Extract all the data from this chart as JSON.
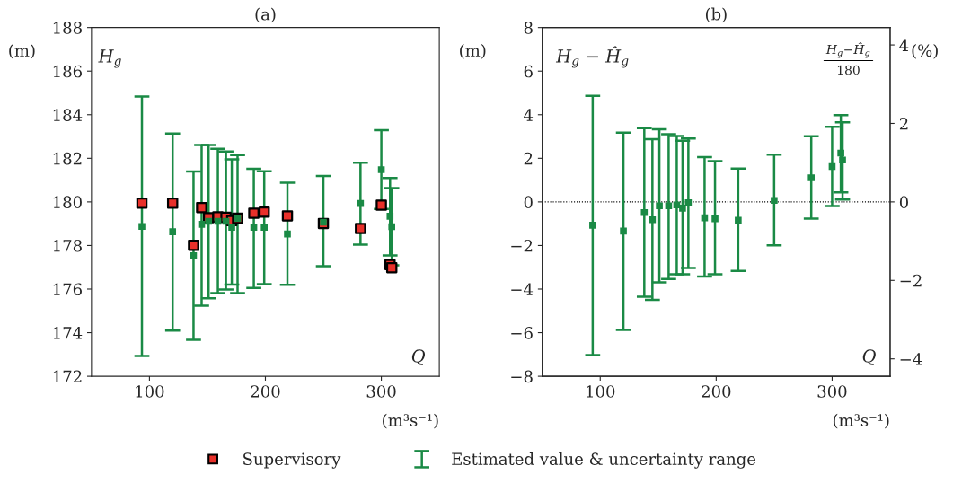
{
  "chart_data": [
    {
      "type": "scatter",
      "title": "(a)",
      "xlabel": "(m³s⁻¹)",
      "ylabel": "(m)",
      "annotations": [
        "H$_{g}$",
        "Q"
      ],
      "x": [
        93.5,
        120,
        138,
        145,
        151,
        159,
        166,
        171,
        176,
        190,
        199,
        219,
        250,
        282,
        300,
        307.5,
        309
      ],
      "series": [
        {
          "name": "Supervisory",
          "marker": "square",
          "color": "#e8302a",
          "values": [
            179.94,
            179.94,
            178.01,
            179.74,
            179.27,
            179.31,
            179.29,
            179.14,
            179.25,
            179.48,
            179.53,
            179.36,
            179.01,
            178.78,
            179.85,
            177.12,
            176.98
          ]
        },
        {
          "name": "Estimated value & uncertainty range",
          "marker": "square",
          "color": "#1a8a45",
          "values": [
            178.87,
            178.63,
            177.53,
            178.97,
            179.11,
            179.11,
            179.11,
            178.83,
            179.25,
            178.83,
            178.83,
            178.53,
            179.07,
            179.93,
            181.48,
            179.34,
            178.86
          ],
          "errors": [
            [
              172.93,
              184.83
            ],
            [
              174.09,
              183.14
            ],
            [
              173.67,
              181.4
            ],
            [
              175.24,
              182.61
            ],
            [
              175.58,
              182.61
            ],
            [
              175.81,
              182.44
            ],
            [
              175.98,
              182.31
            ],
            [
              176.21,
              181.95
            ],
            [
              175.81,
              182.15
            ],
            [
              176.05,
              181.52
            ],
            [
              176.23,
              181.41
            ],
            [
              176.2,
              180.88
            ],
            [
              177.05,
              181.19
            ],
            [
              178.04,
              181.8
            ],
            [
              179.68,
              183.29
            ],
            [
              177.54,
              181.1
            ],
            [
              177.09,
              180.63
            ]
          ]
        }
      ],
      "xlim": [
        50,
        350
      ],
      "xticks": [
        100,
        200,
        300
      ],
      "ylim": [
        172,
        188
      ],
      "yticks": [
        172,
        174,
        176,
        178,
        180,
        182,
        184,
        186,
        188
      ],
      "legend": "bottom"
    },
    {
      "type": "scatter",
      "title": "(b)",
      "xlabel": "(m³s⁻¹)",
      "ylabel": "(m)",
      "y2label": "(%)",
      "annotations": [
        "H$_{g}$ − Ĥ$_{g}$",
        "H$_{g}$−Ĥ$_{g}$",
        "180",
        "Q"
      ],
      "x": [
        93.5,
        120,
        138,
        145,
        151,
        159,
        166,
        171,
        176,
        190,
        199,
        219,
        250,
        282,
        300,
        307.5,
        309
      ],
      "series": [
        {
          "marker": "square",
          "color": "#1a8a45",
          "values": [
            -1.07,
            -1.34,
            -0.49,
            -0.82,
            -0.18,
            -0.18,
            -0.14,
            -0.29,
            -0.04,
            -0.73,
            -0.78,
            -0.84,
            0.07,
            1.11,
            1.62,
            2.24,
            1.92
          ],
          "errors": [
            [
              -7.03,
              4.87
            ],
            [
              -5.87,
              3.18
            ],
            [
              -4.35,
              3.38
            ],
            [
              -4.49,
              2.88
            ],
            [
              -3.69,
              3.33
            ],
            [
              -3.54,
              3.11
            ],
            [
              -3.32,
              3.02
            ],
            [
              -3.32,
              2.81
            ],
            [
              -3.03,
              2.91
            ],
            [
              -3.42,
              2.05
            ],
            [
              -3.32,
              1.87
            ],
            [
              -3.17,
              1.53
            ],
            [
              -1.99,
              2.17
            ],
            [
              -0.77,
              3.01
            ],
            [
              -0.19,
              3.44
            ],
            [
              0.44,
              3.98
            ],
            [
              0.11,
              3.65
            ]
          ]
        }
      ],
      "ref_lines": [
        {
          "axis": "y",
          "value": 0,
          "color": "#000000",
          "line_style": "dotted"
        }
      ],
      "xlim": [
        50,
        350
      ],
      "xticks": [
        100,
        200,
        300
      ],
      "ylim": [
        -8,
        8
      ],
      "yticks": [
        {
          "value": -8,
          "label": "−8"
        },
        {
          "value": -6,
          "label": "−6"
        },
        {
          "value": -4,
          "label": "−4"
        },
        {
          "value": -2,
          "label": "−2"
        },
        0,
        2,
        4,
        6,
        8
      ],
      "y2lim": [
        -4.444,
        4.444
      ],
      "y2ticks": [
        {
          "value": -4,
          "label": "−4"
        },
        {
          "value": -2,
          "label": "−2"
        },
        0,
        2,
        4
      ]
    }
  ]
}
